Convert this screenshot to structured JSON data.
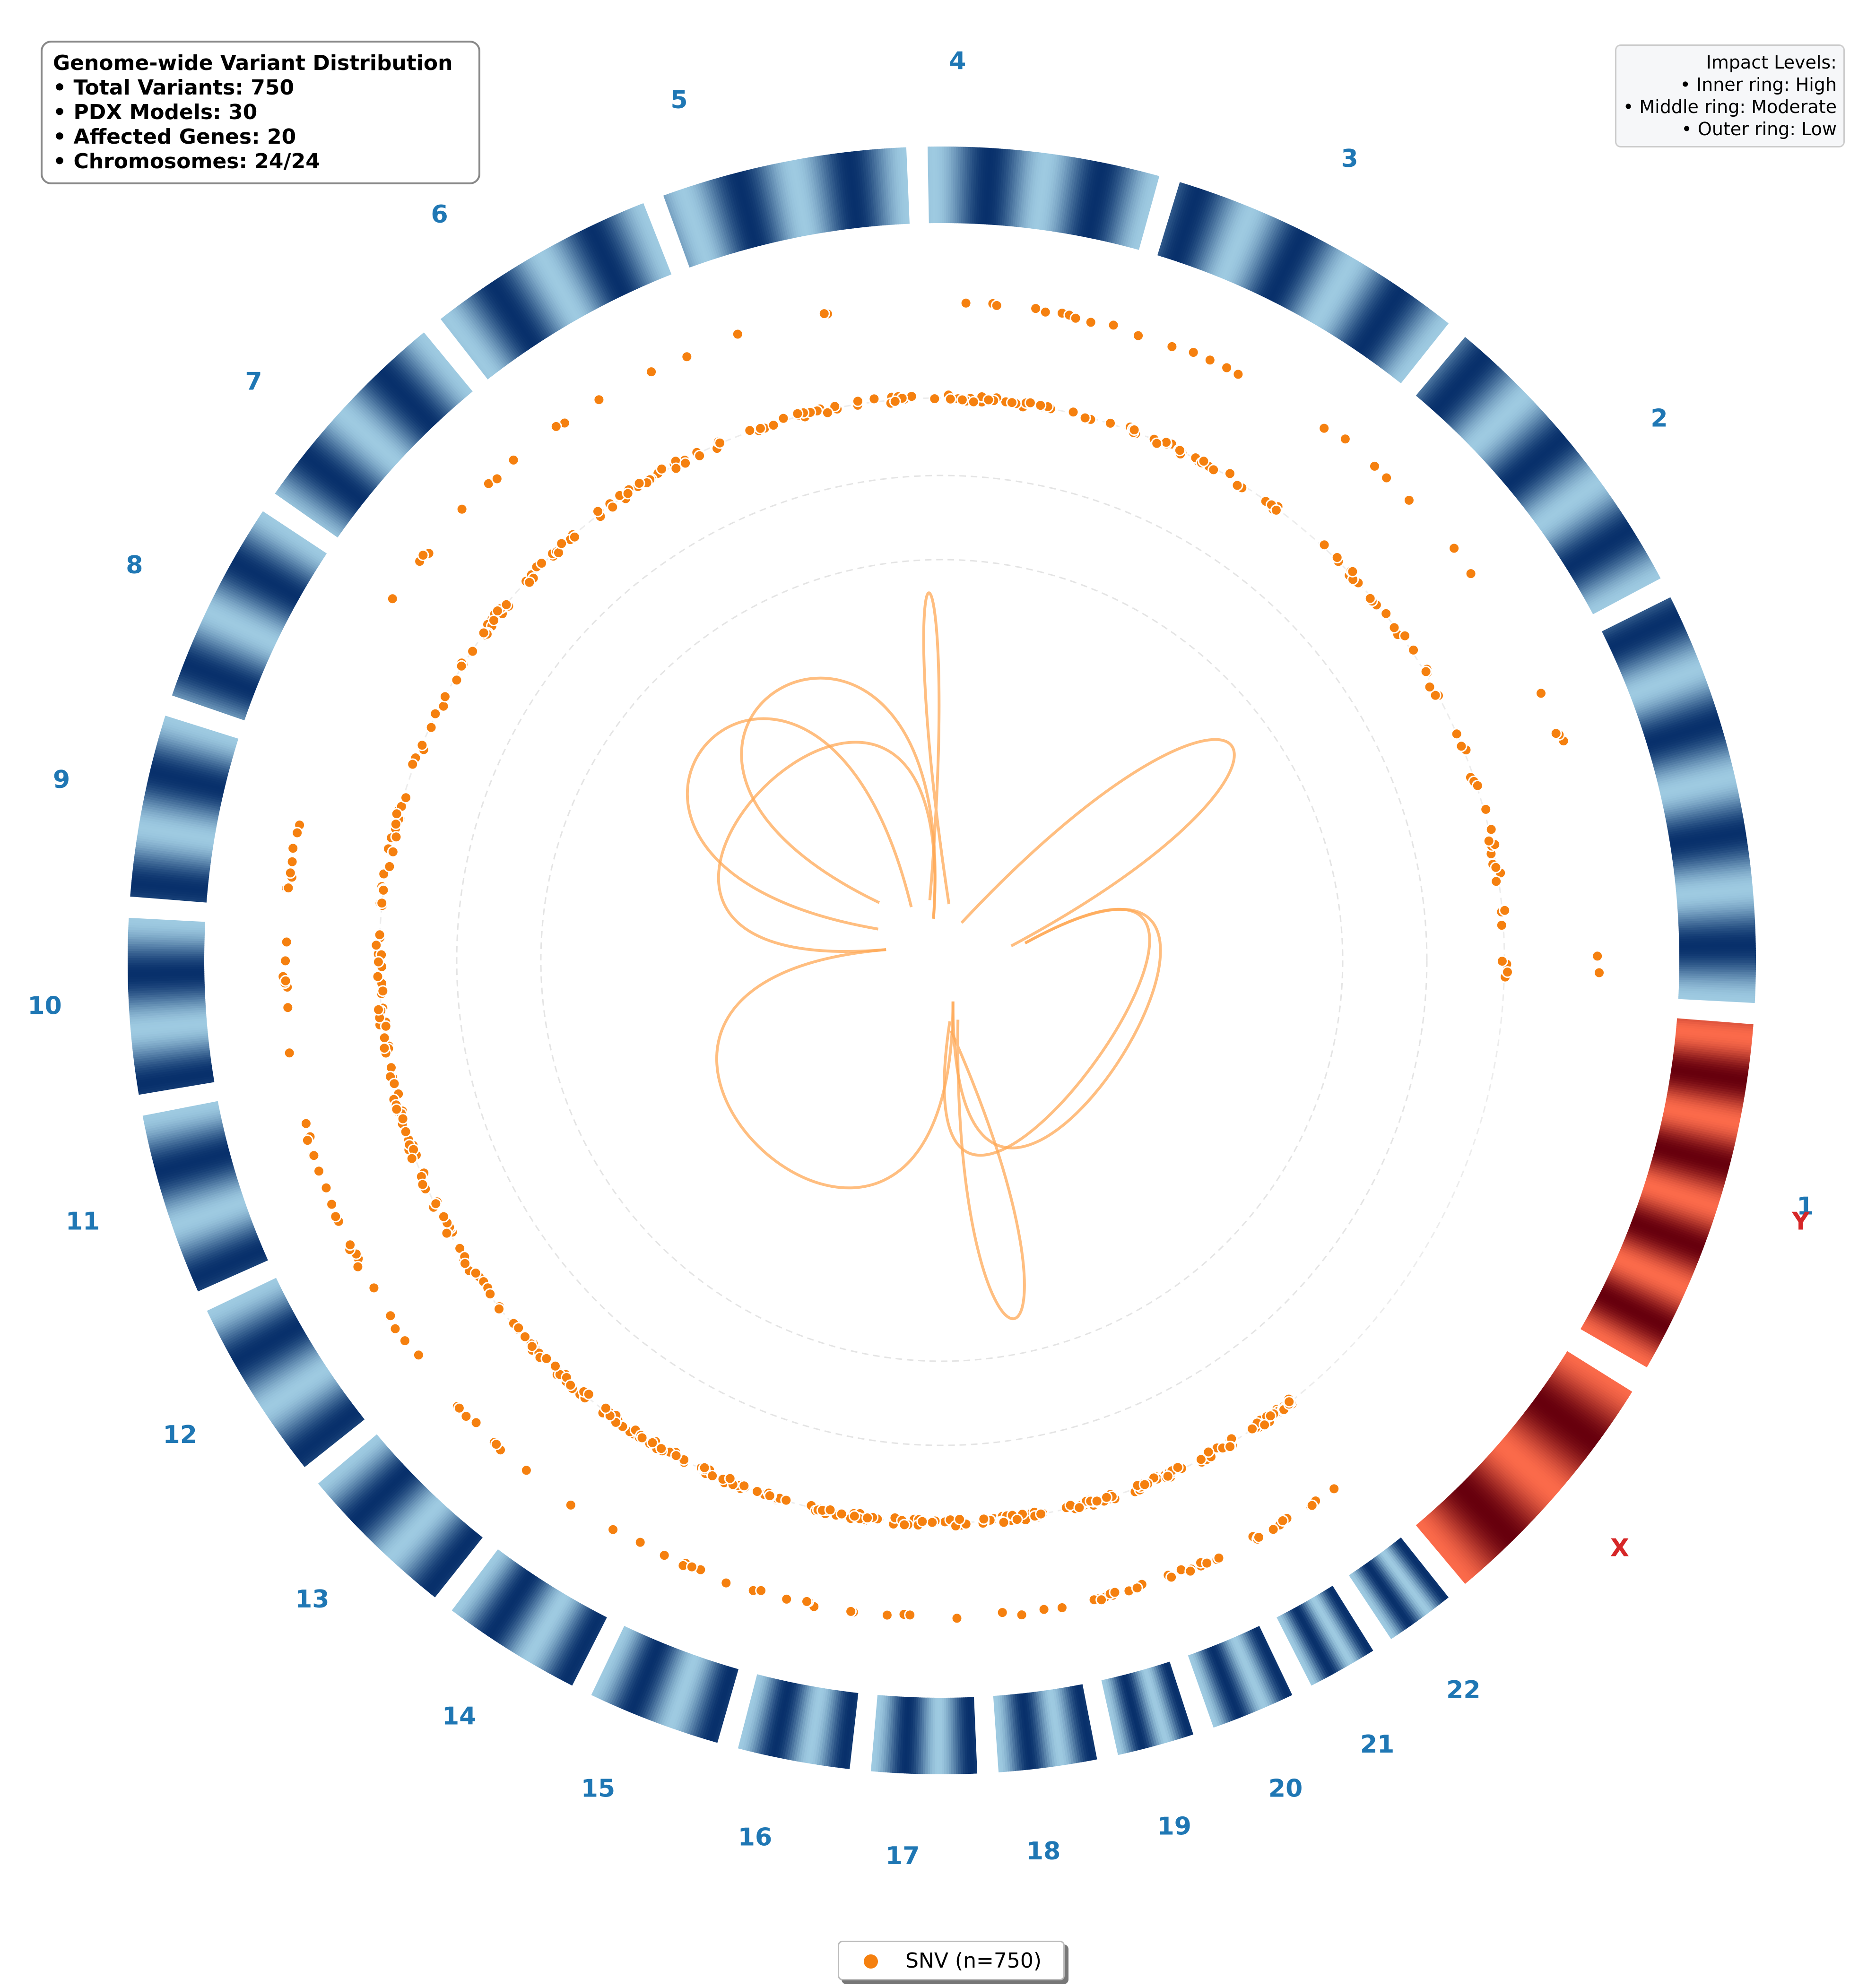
{
  "info": {
    "title": "Genome-wide Variant Distribution",
    "total_variants": "• Total Variants: 750",
    "pdx_models": "• PDX Models: 30",
    "affected_genes": "• Affected Genes: 20",
    "chromosomes": "• Chromosomes: 24/24"
  },
  "impact_legend": {
    "title": "Impact Levels:",
    "inner": "• Inner ring: High",
    "middle": "• Middle ring: Moderate",
    "outer": "• Outer ring: Low"
  },
  "legend": {
    "label": "SNV (n=750)"
  },
  "colors": {
    "autosome_label": "#1f77b4",
    "sex_label": "#d62728",
    "variant": "#f5800f",
    "link": "#ffa855",
    "autosome_band_dark": "#08306b",
    "autosome_band_light": "#9ecae1",
    "sex_band_dark": "#67000d",
    "sex_band_light": "#fb6a4a"
  },
  "chart_data": {
    "type": "circos",
    "chromosomes": [
      {
        "name": "1",
        "type": "autosome"
      },
      {
        "name": "2",
        "type": "autosome"
      },
      {
        "name": "3",
        "type": "autosome"
      },
      {
        "name": "4",
        "type": "autosome"
      },
      {
        "name": "5",
        "type": "autosome"
      },
      {
        "name": "6",
        "type": "autosome"
      },
      {
        "name": "7",
        "type": "autosome"
      },
      {
        "name": "8",
        "type": "autosome"
      },
      {
        "name": "9",
        "type": "autosome"
      },
      {
        "name": "10",
        "type": "autosome"
      },
      {
        "name": "11",
        "type": "autosome"
      },
      {
        "name": "12",
        "type": "autosome"
      },
      {
        "name": "13",
        "type": "autosome"
      },
      {
        "name": "14",
        "type": "autosome"
      },
      {
        "name": "15",
        "type": "autosome"
      },
      {
        "name": "16",
        "type": "autosome"
      },
      {
        "name": "17",
        "type": "autosome"
      },
      {
        "name": "18",
        "type": "autosome"
      },
      {
        "name": "19",
        "type": "autosome"
      },
      {
        "name": "20",
        "type": "autosome"
      },
      {
        "name": "21",
        "type": "autosome"
      },
      {
        "name": "22",
        "type": "autosome"
      },
      {
        "name": "X",
        "type": "sex"
      },
      {
        "name": "Y",
        "type": "sex"
      }
    ],
    "variant_type": "SNV",
    "variant_count": 750,
    "rings": [
      "High",
      "Moderate",
      "Low"
    ],
    "links": [
      {
        "from": "9",
        "to": "5"
      },
      {
        "from": "8",
        "to": "6"
      },
      {
        "from": "7",
        "to": "5"
      },
      {
        "from": "4",
        "to": "5"
      },
      {
        "from": "1",
        "to": "3"
      },
      {
        "from": "1",
        "to": "18"
      },
      {
        "from": "9",
        "to": "19"
      },
      {
        "from": "18",
        "to": "19"
      },
      {
        "from": "1",
        "to": "19"
      }
    ]
  }
}
